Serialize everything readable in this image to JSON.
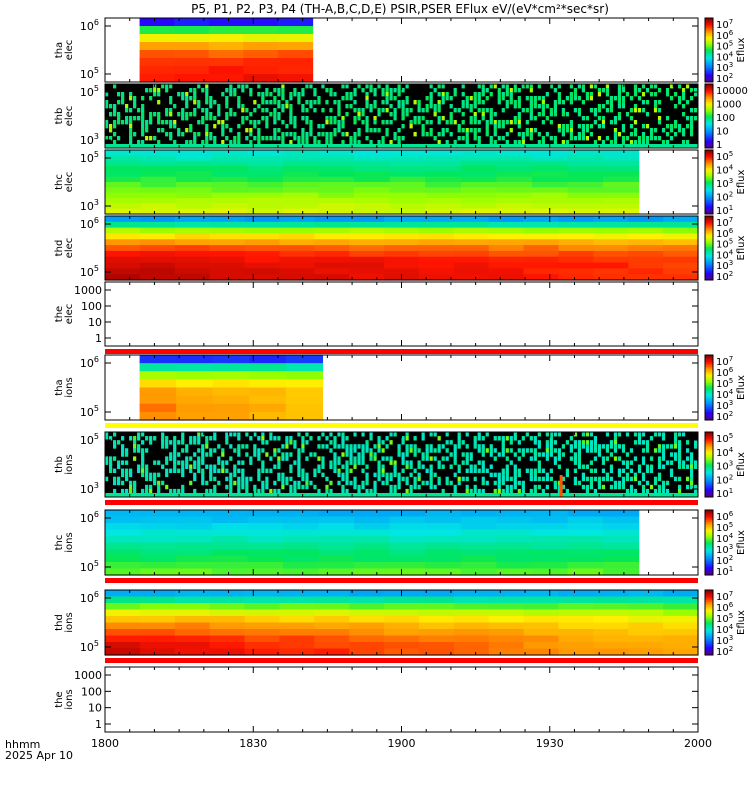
{
  "title": "P5, P1, P2, P3, P4 (TH-A,B,C,D,E) PSIR,PSER EFlux eV/(eV*cm²*sec*sr)",
  "footer": {
    "corner_label": "hhmm",
    "date": "2025 Apr 10"
  },
  "colors": {
    "bar_red": "#ff0000",
    "bar_yellow": "#ffff00",
    "frame": "#000000"
  },
  "chart_data": {
    "type": "heatmap",
    "xaxis": {
      "ticks": [
        "1800",
        "1830",
        "1900",
        "1930",
        "2000"
      ],
      "range_hhmm": [
        "1800",
        "2000"
      ]
    },
    "colormap": "rainbow (purple-blue-cyan-green-yellow-orange-red-darkred)",
    "panels": [
      {
        "name": "tha-elec",
        "ylabel": [
          "tha",
          "elec"
        ],
        "yticks": [
          {
            "base": "10",
            "exp": "5"
          },
          {
            "base": "10",
            "exp": "6"
          }
        ],
        "ylog": true,
        "cbar": {
          "label": "Eflux",
          "ticks": [
            {
              "b": "10",
              "e": "2"
            },
            {
              "b": "10",
              "e": "3"
            },
            {
              "b": "10",
              "e": "4"
            },
            {
              "b": "10",
              "e": "5"
            },
            {
              "b": "10",
              "e": "6"
            },
            {
              "b": "10",
              "e": "7"
            }
          ]
        },
        "coverage": [
          "1807",
          "1842"
        ],
        "pattern": "banded",
        "band_levels": [
          0.12,
          0.52,
          0.68,
          0.78,
          0.84,
          0.87,
          0.89,
          0.9
        ],
        "time_trend": 0.01
      },
      {
        "name": "thb-elec",
        "ylabel": [
          "thb",
          "elec"
        ],
        "yticks": [
          {
            "base": "10",
            "exp": "3"
          },
          {
            "base": "10",
            "exp": "5"
          }
        ],
        "ylog": true,
        "cbar": {
          "label": "",
          "ticks": [
            {
              "b": "1",
              "e": ""
            },
            {
              "b": "10",
              "e": ""
            },
            {
              "b": "100",
              "e": ""
            },
            {
              "b": "1000",
              "e": ""
            },
            {
              "b": "10000",
              "e": ""
            }
          ]
        },
        "coverage": [
          "1800",
          "2000"
        ],
        "pattern": "noise",
        "noise_levels": [
          0.0,
          0.35,
          0.45,
          0.5
        ]
      },
      {
        "name": "thc-elec",
        "ylabel": [
          "thc",
          "elec"
        ],
        "yticks": [
          {
            "base": "10",
            "exp": "3"
          },
          {
            "base": "10",
            "exp": "5"
          }
        ],
        "ylog": true,
        "cbar": {
          "label": "Eflux",
          "ticks": [
            {
              "b": "10",
              "e": "1"
            },
            {
              "b": "10",
              "e": "2"
            },
            {
              "b": "10",
              "e": "3"
            },
            {
              "b": "10",
              "e": "4"
            },
            {
              "b": "10",
              "e": "5"
            }
          ]
        },
        "coverage": [
          "1800",
          "1948"
        ],
        "pattern": "banded",
        "band_levels": [
          0.4,
          0.42,
          0.45,
          0.48,
          0.5,
          0.52,
          0.55,
          0.57,
          0.6,
          0.62,
          0.64,
          0.66
        ],
        "time_trend": 0.0
      },
      {
        "name": "thd-elec",
        "ylabel": [
          "thd",
          "elec"
        ],
        "yticks": [
          {
            "base": "10",
            "exp": "5"
          },
          {
            "base": "10",
            "exp": "6"
          }
        ],
        "ylog": true,
        "cbar": {
          "label": "Eflux",
          "ticks": [
            {
              "b": "10",
              "e": "2"
            },
            {
              "b": "10",
              "e": "3"
            },
            {
              "b": "10",
              "e": "4"
            },
            {
              "b": "10",
              "e": "5"
            },
            {
              "b": "10",
              "e": "6"
            },
            {
              "b": "10",
              "e": "7"
            }
          ]
        },
        "coverage": [
          "1800",
          "2000"
        ],
        "pattern": "banded",
        "band_levels": [
          0.28,
          0.45,
          0.62,
          0.72,
          0.8,
          0.86,
          0.9,
          0.93,
          0.95,
          0.96,
          0.97
        ],
        "time_trend": -0.1
      },
      {
        "name": "the-elec",
        "ylabel": [
          "the",
          "elec"
        ],
        "yticks": [
          {
            "base": "1",
            "exp": ""
          },
          {
            "base": "10",
            "exp": ""
          },
          {
            "base": "100",
            "exp": ""
          },
          {
            "base": "1000",
            "exp": ""
          }
        ],
        "ylog": true,
        "cbar": null,
        "coverage": null,
        "pattern": "empty",
        "bars_below": [
          "red"
        ]
      },
      {
        "name": "tha-ions",
        "ylabel": [
          "tha",
          "ions"
        ],
        "yticks": [
          {
            "base": "10",
            "exp": "5"
          },
          {
            "base": "10",
            "exp": "6"
          }
        ],
        "ylog": true,
        "cbar": {
          "label": "Eflux",
          "ticks": [
            {
              "b": "10",
              "e": "2"
            },
            {
              "b": "10",
              "e": "3"
            },
            {
              "b": "10",
              "e": "4"
            },
            {
              "b": "10",
              "e": "5"
            },
            {
              "b": "10",
              "e": "6"
            },
            {
              "b": "10",
              "e": "7"
            }
          ]
        },
        "coverage": [
          "1807",
          "1844"
        ],
        "pattern": "banded",
        "band_levels": [
          0.15,
          0.45,
          0.62,
          0.72,
          0.78,
          0.8,
          0.82,
          0.82
        ],
        "time_trend": -0.08,
        "bars_below": [
          "yellow"
        ]
      },
      {
        "name": "thb-ions",
        "ylabel": [
          "thb",
          "ions"
        ],
        "yticks": [
          {
            "base": "10",
            "exp": "3"
          },
          {
            "base": "10",
            "exp": "5"
          }
        ],
        "ylog": true,
        "cbar": {
          "label": "Eflux",
          "ticks": [
            {
              "b": "10",
              "e": "1"
            },
            {
              "b": "10",
              "e": "2"
            },
            {
              "b": "10",
              "e": "3"
            },
            {
              "b": "10",
              "e": "4"
            },
            {
              "b": "10",
              "e": "5"
            }
          ]
        },
        "coverage": [
          "1800",
          "2000"
        ],
        "pattern": "noise",
        "noise_levels": [
          0.0,
          0.0,
          0.4,
          0.45
        ],
        "spike_time": "1932",
        "bars_below": [
          "red"
        ]
      },
      {
        "name": "thc-ions",
        "ylabel": [
          "thc",
          "ions"
        ],
        "yticks": [
          {
            "base": "10",
            "exp": "5"
          },
          {
            "base": "10",
            "exp": "6"
          }
        ],
        "ylog": true,
        "cbar": {
          "label": "Eflux",
          "ticks": [
            {
              "b": "10",
              "e": "1"
            },
            {
              "b": "10",
              "e": "2"
            },
            {
              "b": "10",
              "e": "3"
            },
            {
              "b": "10",
              "e": "4"
            },
            {
              "b": "10",
              "e": "5"
            },
            {
              "b": "10",
              "e": "6"
            }
          ]
        },
        "coverage": [
          "1800",
          "1948"
        ],
        "pattern": "banded",
        "band_levels": [
          0.3,
          0.33,
          0.36,
          0.39,
          0.42,
          0.45,
          0.48,
          0.5,
          0.53,
          0.56
        ],
        "time_trend": 0.0,
        "bars_below": [
          "red"
        ]
      },
      {
        "name": "thd-ions",
        "ylabel": [
          "thd",
          "ions"
        ],
        "yticks": [
          {
            "base": "10",
            "exp": "5"
          },
          {
            "base": "10",
            "exp": "6"
          }
        ],
        "ylog": true,
        "cbar": {
          "label": "Eflux",
          "ticks": [
            {
              "b": "10",
              "e": "2"
            },
            {
              "b": "10",
              "e": "3"
            },
            {
              "b": "10",
              "e": "4"
            },
            {
              "b": "10",
              "e": "5"
            },
            {
              "b": "10",
              "e": "6"
            },
            {
              "b": "10",
              "e": "7"
            }
          ]
        },
        "coverage": [
          "1800",
          "2000"
        ],
        "pattern": "banded",
        "band_levels": [
          0.3,
          0.45,
          0.58,
          0.68,
          0.76,
          0.82,
          0.86,
          0.9,
          0.93,
          0.95
        ],
        "time_trend": -0.2,
        "bars_below": [
          "red"
        ]
      },
      {
        "name": "the-ions",
        "ylabel": [
          "the",
          "ions"
        ],
        "yticks": [
          {
            "base": "1",
            "exp": ""
          },
          {
            "base": "10",
            "exp": ""
          },
          {
            "base": "100",
            "exp": ""
          },
          {
            "base": "1000",
            "exp": ""
          }
        ],
        "ylog": true,
        "cbar": null,
        "coverage": null,
        "pattern": "empty"
      }
    ]
  }
}
